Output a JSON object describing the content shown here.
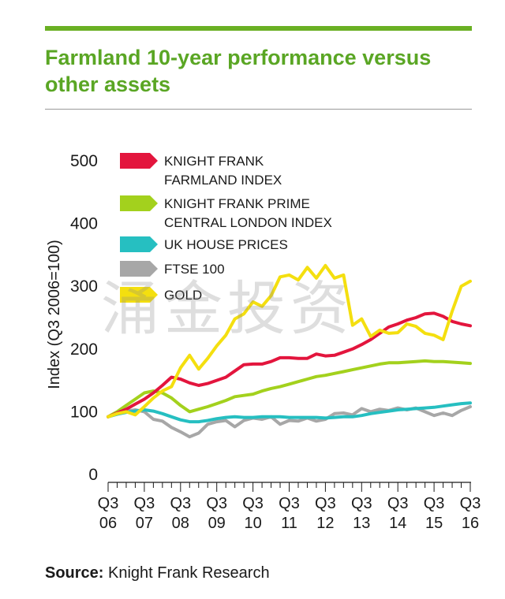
{
  "title": "Farmland 10-year performance versus other assets",
  "colors": {
    "accent": "#6ab023",
    "title": "#5aa624",
    "farmland": "#e3153d",
    "prime_london": "#a3d11d",
    "uk_house": "#26bfc1",
    "ftse": "#a7a7a7",
    "gold": "#f4df0f"
  },
  "watermark": "涌金投资",
  "source": {
    "label": "Source:",
    "text": " Knight Frank Research"
  },
  "chart_data": {
    "type": "line",
    "ylabel": "Index (Q3 2006=100)",
    "ylim": [
      0,
      500
    ],
    "yticks": [
      0,
      100,
      200,
      300,
      400,
      500
    ],
    "xlim": [
      2006.75,
      2016.75
    ],
    "xticks": [
      {
        "x": 2006.75,
        "top": "Q3",
        "bottom": "06"
      },
      {
        "x": 2007.75,
        "top": "Q3",
        "bottom": "07"
      },
      {
        "x": 2008.75,
        "top": "Q3",
        "bottom": "08"
      },
      {
        "x": 2009.75,
        "top": "Q3",
        "bottom": "09"
      },
      {
        "x": 2010.75,
        "top": "Q3",
        "bottom": "10"
      },
      {
        "x": 2011.75,
        "top": "Q3",
        "bottom": "11"
      },
      {
        "x": 2012.75,
        "top": "Q3",
        "bottom": "12"
      },
      {
        "x": 2013.75,
        "top": "Q3",
        "bottom": "13"
      },
      {
        "x": 2014.75,
        "top": "Q3",
        "bottom": "14"
      },
      {
        "x": 2015.75,
        "top": "Q3",
        "bottom": "15"
      },
      {
        "x": 2016.75,
        "top": "Q3",
        "bottom": "16"
      }
    ],
    "grid": false,
    "legend_position": "top-left",
    "series": [
      {
        "name": "KNIGHT FRANK FARMLAND INDEX",
        "legend_lines": [
          "KNIGHT FRANK",
          "FARMLAND INDEX"
        ],
        "color_key": "farmland",
        "x": [
          2006.75,
          2007.0,
          2007.25,
          2007.5,
          2007.75,
          2008.0,
          2008.25,
          2008.5,
          2008.75,
          2009.0,
          2009.25,
          2009.5,
          2009.75,
          2010.0,
          2010.25,
          2010.5,
          2010.75,
          2011.0,
          2011.25,
          2011.5,
          2011.75,
          2012.0,
          2012.25,
          2012.5,
          2012.75,
          2013.0,
          2013.25,
          2013.5,
          2013.75,
          2014.0,
          2014.25,
          2014.5,
          2014.75,
          2015.0,
          2015.25,
          2015.5,
          2015.75,
          2016.0,
          2016.25,
          2016.5,
          2016.75
        ],
        "y": [
          92,
          98,
          104,
          112,
          120,
          130,
          142,
          155,
          152,
          146,
          142,
          145,
          150,
          155,
          165,
          175,
          176,
          176,
          180,
          186,
          186,
          185,
          185,
          192,
          189,
          190,
          195,
          200,
          207,
          215,
          225,
          235,
          240,
          246,
          250,
          256,
          257,
          252,
          244,
          240,
          237
        ]
      },
      {
        "name": "KNIGHT FRANK PRIME CENTRAL LONDON INDEX",
        "legend_lines": [
          "KNIGHT FRANK PRIME",
          "CENTRAL LONDON INDEX"
        ],
        "color_key": "prime_london",
        "x": [
          2006.75,
          2007.0,
          2007.25,
          2007.5,
          2007.75,
          2008.0,
          2008.25,
          2008.5,
          2008.75,
          2009.0,
          2009.25,
          2009.5,
          2009.75,
          2010.0,
          2010.25,
          2010.5,
          2010.75,
          2011.0,
          2011.25,
          2011.5,
          2011.75,
          2012.0,
          2012.25,
          2012.5,
          2012.75,
          2013.0,
          2013.25,
          2013.5,
          2013.75,
          2014.0,
          2014.25,
          2014.5,
          2014.75,
          2015.0,
          2015.25,
          2015.5,
          2015.75,
          2016.0,
          2016.25,
          2016.5,
          2016.75
        ],
        "y": [
          92,
          100,
          110,
          120,
          130,
          133,
          130,
          122,
          110,
          100,
          104,
          108,
          113,
          118,
          124,
          126,
          128,
          133,
          137,
          140,
          144,
          148,
          152,
          156,
          158,
          161,
          164,
          167,
          170,
          173,
          176,
          178,
          178,
          179,
          180,
          181,
          180,
          180,
          179,
          178,
          177
        ]
      },
      {
        "name": "UK HOUSE PRICES",
        "legend_lines": [
          "UK HOUSE PRICES"
        ],
        "color_key": "uk_house",
        "x": [
          2006.75,
          2007.0,
          2007.25,
          2007.5,
          2007.75,
          2008.0,
          2008.25,
          2008.5,
          2008.75,
          2009.0,
          2009.25,
          2009.5,
          2009.75,
          2010.0,
          2010.25,
          2010.5,
          2010.75,
          2011.0,
          2011.25,
          2011.5,
          2011.75,
          2012.0,
          2012.25,
          2012.5,
          2012.75,
          2013.0,
          2013.25,
          2013.5,
          2013.75,
          2014.0,
          2014.25,
          2014.5,
          2014.75,
          2015.0,
          2015.25,
          2015.5,
          2015.75,
          2016.0,
          2016.25,
          2016.5,
          2016.75
        ],
        "y": [
          92,
          96,
          99,
          101,
          103,
          101,
          97,
          92,
          87,
          84,
          84,
          86,
          89,
          91,
          92,
          91,
          91,
          92,
          92,
          92,
          91,
          91,
          91,
          91,
          90,
          91,
          92,
          92,
          94,
          97,
          99,
          101,
          103,
          104,
          105,
          106,
          107,
          109,
          111,
          113,
          114
        ]
      },
      {
        "name": "FTSE 100",
        "legend_lines": [
          "FTSE 100"
        ],
        "color_key": "ftse",
        "x": [
          2006.75,
          2007.0,
          2007.25,
          2007.5,
          2007.75,
          2008.0,
          2008.25,
          2008.5,
          2008.75,
          2009.0,
          2009.25,
          2009.5,
          2009.75,
          2010.0,
          2010.25,
          2010.5,
          2010.75,
          2011.0,
          2011.25,
          2011.5,
          2011.75,
          2012.0,
          2012.25,
          2012.5,
          2012.75,
          2013.0,
          2013.25,
          2013.5,
          2013.75,
          2014.0,
          2014.25,
          2014.5,
          2014.75,
          2015.0,
          2015.25,
          2015.5,
          2015.75,
          2016.0,
          2016.25,
          2016.5,
          2016.75
        ],
        "y": [
          92,
          98,
          101,
          103,
          100,
          88,
          85,
          75,
          68,
          60,
          66,
          80,
          84,
          86,
          76,
          86,
          90,
          88,
          92,
          80,
          86,
          85,
          90,
          85,
          88,
          97,
          98,
          95,
          105,
          100,
          104,
          102,
          106,
          103,
          106,
          100,
          94,
          98,
          94,
          102,
          108
        ]
      },
      {
        "name": "GOLD",
        "legend_lines": [
          "GOLD"
        ],
        "color_key": "gold",
        "x": [
          2006.75,
          2007.0,
          2007.25,
          2007.5,
          2007.75,
          2008.0,
          2008.25,
          2008.5,
          2008.75,
          2009.0,
          2009.25,
          2009.5,
          2009.75,
          2010.0,
          2010.25,
          2010.5,
          2010.75,
          2011.0,
          2011.25,
          2011.5,
          2011.75,
          2012.0,
          2012.25,
          2012.5,
          2012.75,
          2013.0,
          2013.25,
          2013.5,
          2013.75,
          2014.0,
          2014.25,
          2014.5,
          2014.75,
          2015.0,
          2015.25,
          2015.5,
          2015.75,
          2016.0,
          2016.25,
          2016.5,
          2016.75
        ],
        "y": [
          92,
          97,
          100,
          95,
          108,
          122,
          133,
          140,
          170,
          190,
          168,
          185,
          205,
          222,
          248,
          256,
          275,
          268,
          285,
          315,
          318,
          310,
          330,
          313,
          333,
          313,
          318,
          238,
          248,
          220,
          230,
          225,
          226,
          240,
          236,
          225,
          222,
          215,
          260,
          300,
          308
        ]
      }
    ]
  }
}
